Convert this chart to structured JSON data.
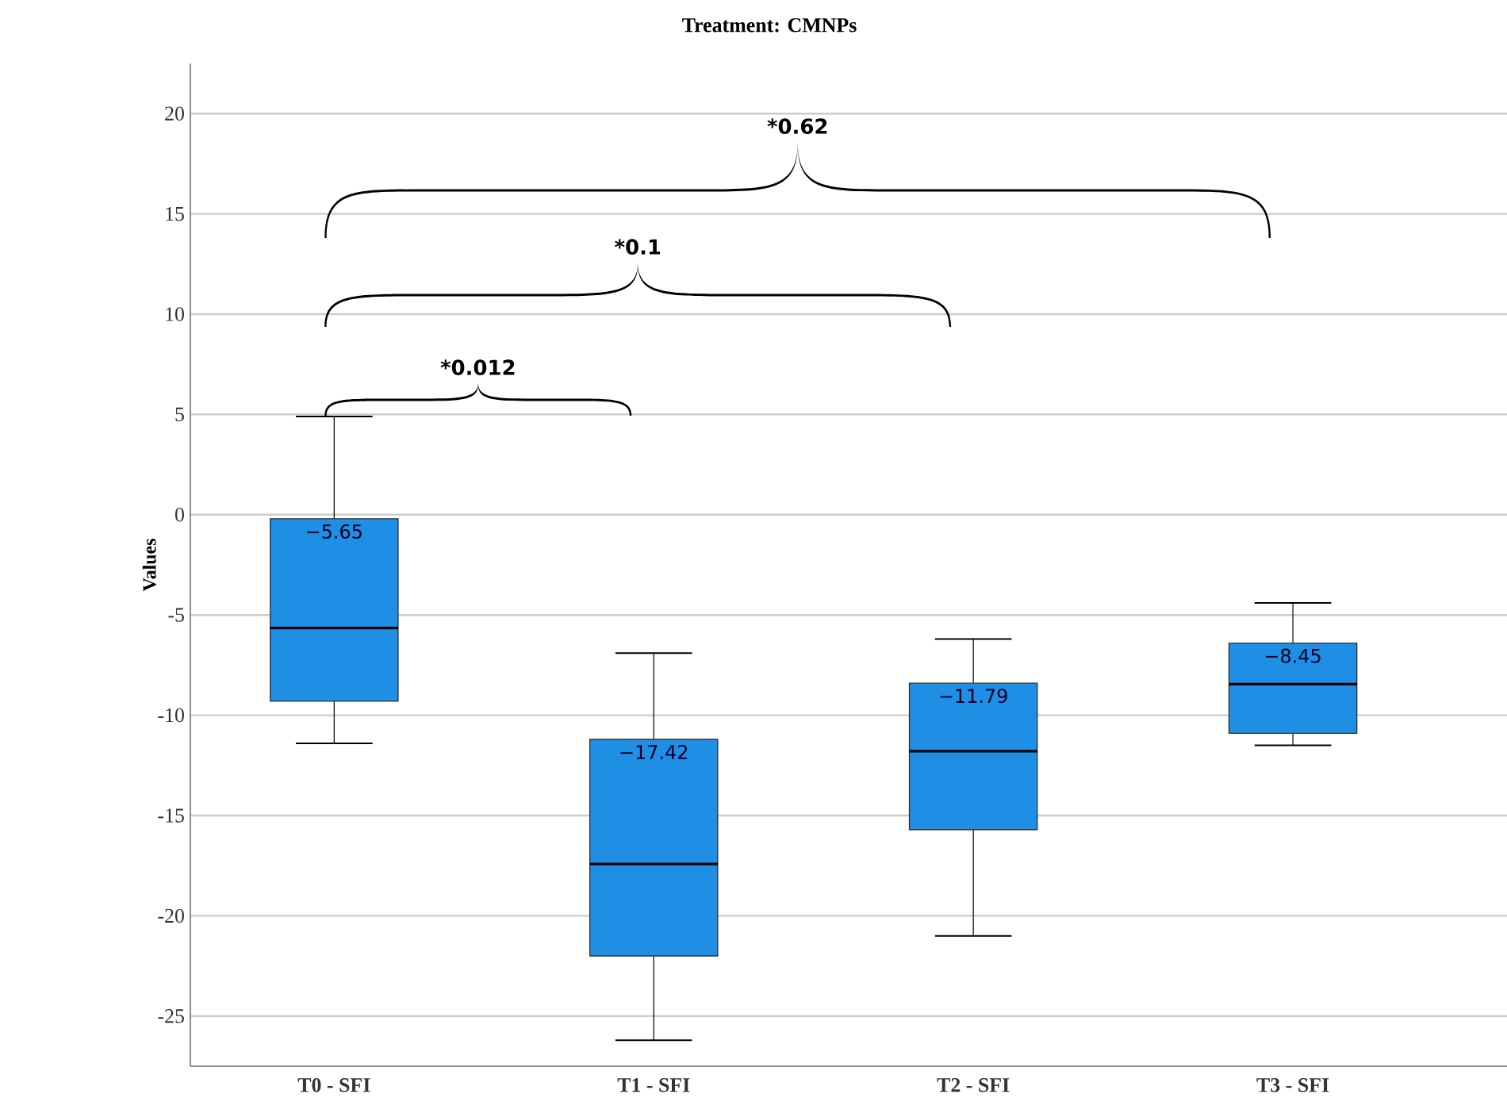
{
  "chart_data": {
    "type": "box",
    "title": "Treatment: CMNPs",
    "ylabel": "Values",
    "categories": [
      "T0 - SFI",
      "T1 - SFI",
      "T2 - SFI",
      "T3 - SFI"
    ],
    "series": [
      {
        "color": "#1f8fe5",
        "value_labels": [
          "−5.65",
          "−17.42",
          "−11.79",
          "−8.45"
        ],
        "boxes": [
          {
            "low": -11.4,
            "q1": -9.3,
            "median": -5.65,
            "q3": -0.2,
            "high": 4.9
          },
          {
            "low": -26.2,
            "q1": -22.0,
            "median": -17.42,
            "q3": -11.2,
            "high": -6.9
          },
          {
            "low": -21.0,
            "q1": -15.7,
            "median": -11.79,
            "q3": -8.4,
            "high": -6.2
          },
          {
            "low": -11.5,
            "q1": -10.9,
            "median": -8.45,
            "q3": -6.4,
            "high": -4.4
          }
        ]
      }
    ],
    "ylim": [
      -27.5,
      22.5
    ],
    "yticks": [
      -25,
      -20,
      -15,
      -10,
      -5,
      0,
      5,
      10,
      15,
      20
    ],
    "grid": "y",
    "annotations": [
      "*0.012",
      "*0.1",
      "*0.62"
    ]
  }
}
